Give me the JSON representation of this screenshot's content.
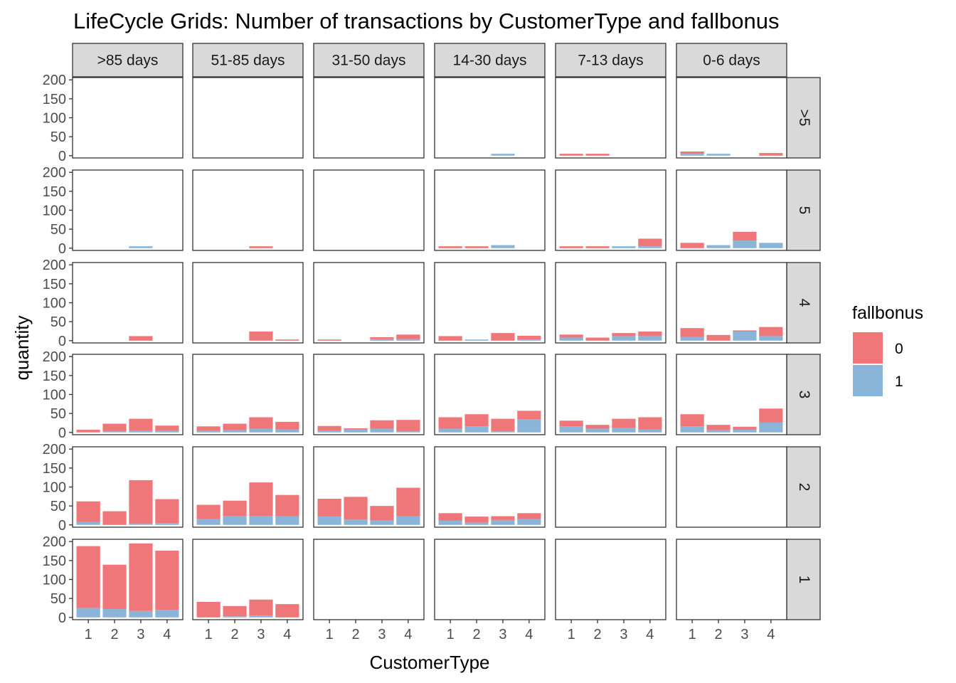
{
  "chart_data": {
    "type": "bar",
    "stacked": true,
    "title": "LifeCycle Grids: Number of transactions by CustomerType and fallbonus",
    "xlabel": "CustomerType",
    "ylabel": "quantity",
    "categories": [
      "1",
      "2",
      "3",
      "4"
    ],
    "column_facets": [
      ">85 days",
      "51-85 days",
      "31-50 days",
      "14-30 days",
      "7-13 days",
      "0-6 days"
    ],
    "row_facets": [
      ">5",
      "5",
      "4",
      "3",
      "2",
      "1"
    ],
    "y_ticks": [
      0,
      50,
      100,
      150,
      200
    ],
    "ylim": [
      -6,
      206
    ],
    "grid": false,
    "legend": {
      "title": "fallbonus",
      "placement": "right",
      "entries": [
        {
          "label": "0",
          "color": "#F07779"
        },
        {
          "label": "1",
          "color": "#8BB5D8"
        }
      ]
    },
    "colors": {
      "fallbonus_0": "#F07779",
      "fallbonus_1": "#8BB5D8",
      "strip_bg": "#D9D9D9",
      "panel_border": "#333333"
    },
    "panels": [
      {
        "row": ">5",
        "col": ">85 days",
        "fallbonus_0": [
          0,
          0,
          0,
          0
        ],
        "fallbonus_1": [
          0,
          0,
          0,
          0
        ]
      },
      {
        "row": ">5",
        "col": "51-85 days",
        "fallbonus_0": [
          0,
          0,
          0,
          0
        ],
        "fallbonus_1": [
          0,
          0,
          0,
          0
        ]
      },
      {
        "row": ">5",
        "col": "31-50 days",
        "fallbonus_0": [
          0,
          0,
          0,
          0
        ],
        "fallbonus_1": [
          0,
          0,
          0,
          0
        ]
      },
      {
        "row": ">5",
        "col": "14-30 days",
        "fallbonus_0": [
          0,
          0,
          0,
          0
        ],
        "fallbonus_1": [
          0,
          0,
          5,
          0
        ]
      },
      {
        "row": ">5",
        "col": "7-13 days",
        "fallbonus_0": [
          5,
          5,
          0,
          0
        ],
        "fallbonus_1": [
          0,
          0,
          0,
          0
        ]
      },
      {
        "row": ">5",
        "col": "0-6 days",
        "fallbonus_0": [
          6,
          0,
          0,
          7
        ],
        "fallbonus_1": [
          5,
          5,
          0,
          0
        ]
      },
      {
        "row": "5",
        "col": ">85 days",
        "fallbonus_0": [
          0,
          0,
          0,
          0
        ],
        "fallbonus_1": [
          0,
          0,
          5,
          0
        ]
      },
      {
        "row": "5",
        "col": "51-85 days",
        "fallbonus_0": [
          0,
          0,
          5,
          0
        ],
        "fallbonus_1": [
          0,
          0,
          0,
          0
        ]
      },
      {
        "row": "5",
        "col": "31-50 days",
        "fallbonus_0": [
          0,
          0,
          0,
          0
        ],
        "fallbonus_1": [
          0,
          0,
          0,
          0
        ]
      },
      {
        "row": "5",
        "col": "14-30 days",
        "fallbonus_0": [
          5,
          5,
          0,
          0
        ],
        "fallbonus_1": [
          0,
          0,
          8,
          0
        ]
      },
      {
        "row": "5",
        "col": "7-13 days",
        "fallbonus_0": [
          5,
          5,
          0,
          20
        ],
        "fallbonus_1": [
          0,
          0,
          5,
          5
        ]
      },
      {
        "row": "5",
        "col": "0-6 days",
        "fallbonus_0": [
          14,
          0,
          23,
          0
        ],
        "fallbonus_1": [
          0,
          8,
          20,
          14
        ]
      },
      {
        "row": "4",
        "col": ">85 days",
        "fallbonus_0": [
          0,
          0,
          12,
          0
        ],
        "fallbonus_1": [
          0,
          0,
          0,
          0
        ]
      },
      {
        "row": "4",
        "col": "51-85 days",
        "fallbonus_0": [
          0,
          0,
          24,
          3
        ],
        "fallbonus_1": [
          0,
          0,
          0,
          0
        ]
      },
      {
        "row": "4",
        "col": "31-50 days",
        "fallbonus_0": [
          3,
          0,
          5,
          12
        ],
        "fallbonus_1": [
          0,
          0,
          4,
          4
        ]
      },
      {
        "row": "4",
        "col": "14-30 days",
        "fallbonus_0": [
          12,
          0,
          20,
          10
        ],
        "fallbonus_1": [
          0,
          3,
          0,
          3
        ]
      },
      {
        "row": "4",
        "col": "7-13 days",
        "fallbonus_0": [
          8,
          8,
          8,
          12
        ],
        "fallbonus_1": [
          8,
          0,
          12,
          12
        ]
      },
      {
        "row": "4",
        "col": "0-6 days",
        "fallbonus_0": [
          23,
          15,
          3,
          24
        ],
        "fallbonus_1": [
          10,
          0,
          24,
          12
        ]
      },
      {
        "row": "3",
        "col": ">85 days",
        "fallbonus_0": [
          7,
          20,
          32,
          14
        ],
        "fallbonus_1": [
          0,
          3,
          4,
          4
        ]
      },
      {
        "row": "3",
        "col": "51-85 days",
        "fallbonus_0": [
          12,
          17,
          30,
          20
        ],
        "fallbonus_1": [
          4,
          6,
          10,
          8
        ]
      },
      {
        "row": "3",
        "col": "31-50 days",
        "fallbonus_0": [
          13,
          3,
          22,
          30
        ],
        "fallbonus_1": [
          4,
          8,
          10,
          3
        ]
      },
      {
        "row": "3",
        "col": "14-30 days",
        "fallbonus_0": [
          30,
          32,
          33,
          22
        ],
        "fallbonus_1": [
          10,
          16,
          3,
          35
        ]
      },
      {
        "row": "3",
        "col": "7-13 days",
        "fallbonus_0": [
          15,
          10,
          24,
          32
        ],
        "fallbonus_1": [
          16,
          10,
          12,
          8
        ]
      },
      {
        "row": "3",
        "col": "0-6 days",
        "fallbonus_0": [
          32,
          14,
          8,
          37
        ],
        "fallbonus_1": [
          16,
          6,
          7,
          26
        ]
      },
      {
        "row": "2",
        "col": ">85 days",
        "fallbonus_0": [
          54,
          36,
          115,
          63
        ],
        "fallbonus_1": [
          8,
          0,
          3,
          5
        ]
      },
      {
        "row": "2",
        "col": "51-85 days",
        "fallbonus_0": [
          38,
          40,
          88,
          56
        ],
        "fallbonus_1": [
          15,
          24,
          24,
          23
        ]
      },
      {
        "row": "2",
        "col": "31-50 days",
        "fallbonus_0": [
          47,
          60,
          38,
          75
        ],
        "fallbonus_1": [
          22,
          14,
          12,
          23
        ]
      },
      {
        "row": "2",
        "col": "14-30 days",
        "fallbonus_0": [
          20,
          16,
          10,
          16
        ],
        "fallbonus_1": [
          11,
          6,
          13,
          15
        ]
      },
      {
        "row": "2",
        "col": "7-13 days",
        "fallbonus_0": [
          0,
          0,
          0,
          0
        ],
        "fallbonus_1": [
          0,
          0,
          0,
          0
        ]
      },
      {
        "row": "2",
        "col": "0-6 days",
        "fallbonus_0": [
          0,
          0,
          0,
          0
        ],
        "fallbonus_1": [
          0,
          0,
          0,
          0
        ]
      },
      {
        "row": "1",
        "col": ">85 days",
        "fallbonus_0": [
          163,
          117,
          178,
          156
        ],
        "fallbonus_1": [
          25,
          22,
          17,
          20
        ]
      },
      {
        "row": "1",
        "col": "51-85 days",
        "fallbonus_0": [
          41,
          27,
          42,
          35
        ],
        "fallbonus_1": [
          0,
          3,
          5,
          0
        ]
      },
      {
        "row": "1",
        "col": "31-50 days",
        "fallbonus_0": [
          0,
          0,
          0,
          0
        ],
        "fallbonus_1": [
          0,
          0,
          0,
          0
        ]
      },
      {
        "row": "1",
        "col": "14-30 days",
        "fallbonus_0": [
          0,
          0,
          0,
          0
        ],
        "fallbonus_1": [
          0,
          0,
          0,
          0
        ]
      },
      {
        "row": "1",
        "col": "7-13 days",
        "fallbonus_0": [
          0,
          0,
          0,
          0
        ],
        "fallbonus_1": [
          0,
          0,
          0,
          0
        ]
      },
      {
        "row": "1",
        "col": "0-6 days",
        "fallbonus_0": [
          0,
          0,
          0,
          0
        ],
        "fallbonus_1": [
          0,
          0,
          0,
          0
        ]
      }
    ]
  }
}
